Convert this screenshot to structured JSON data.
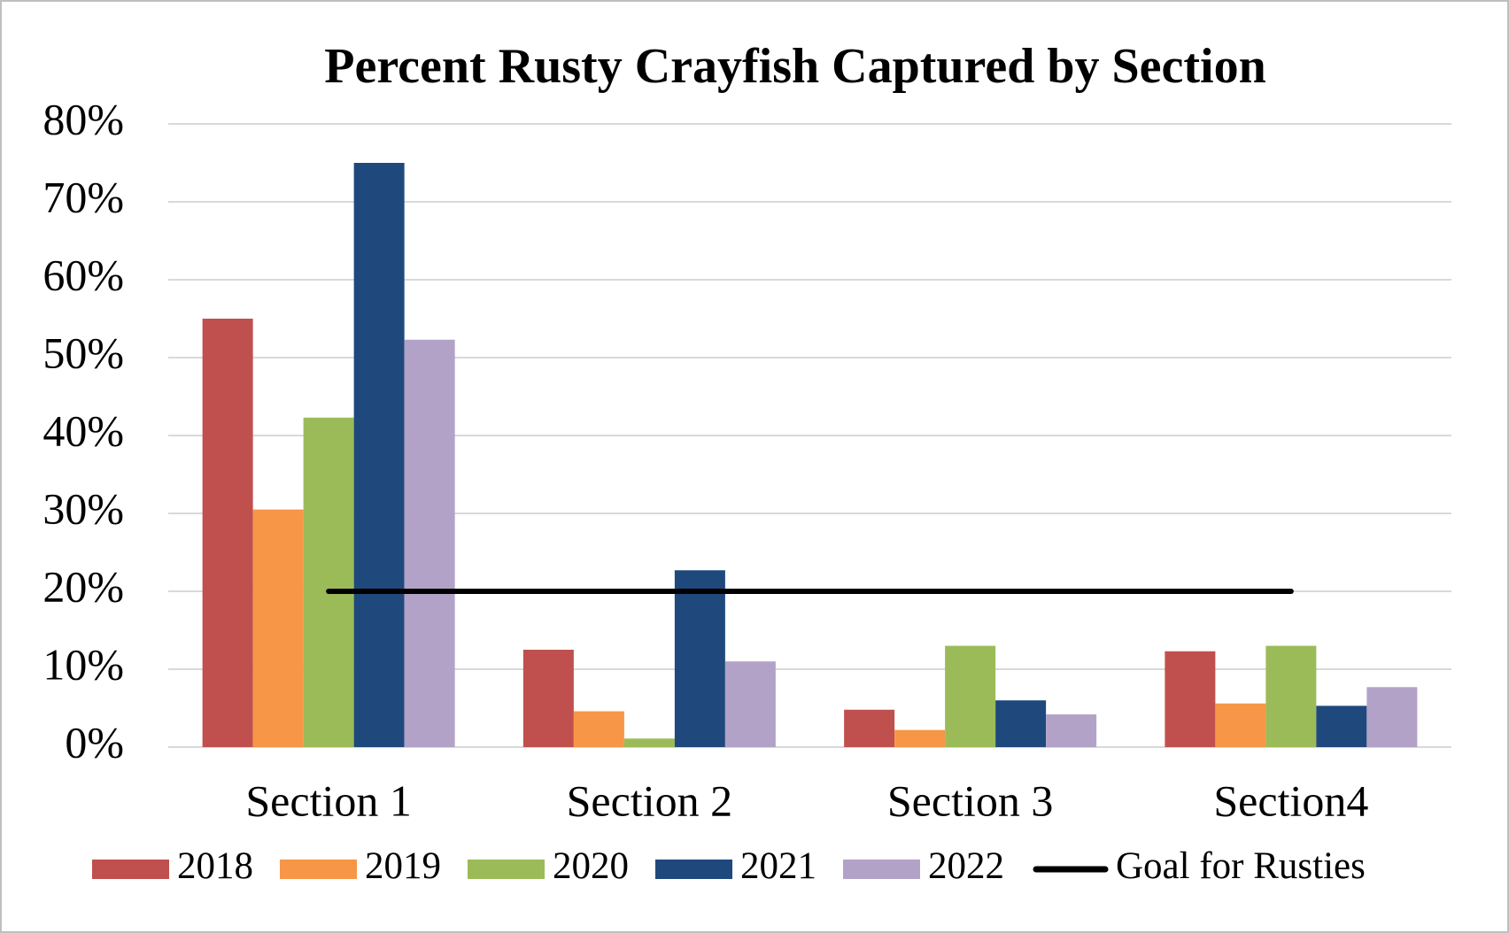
{
  "chart_data": {
    "type": "bar",
    "title": "Percent Rusty Crayfish Captured by Section",
    "categories": [
      "Section 1",
      "Section 2",
      "Section 3",
      "Section4"
    ],
    "series": [
      {
        "name": "2018",
        "color": "#c0504d",
        "values": [
          55,
          12.5,
          4.8,
          12.3
        ]
      },
      {
        "name": "2019",
        "color": "#f79646",
        "values": [
          30.5,
          4.6,
          2.2,
          5.6
        ]
      },
      {
        "name": "2020",
        "color": "#9bbb59",
        "values": [
          42.3,
          1.1,
          13,
          13
        ]
      },
      {
        "name": "2021",
        "color": "#1f497d",
        "values": [
          75,
          22.7,
          6,
          5.3
        ]
      },
      {
        "name": "2022",
        "color": "#b3a2c7",
        "values": [
          52.3,
          11,
          4.2,
          7.7
        ]
      },
      {
        "name": "Goal for Rusties",
        "type": "line",
        "color": "#000000",
        "values": [
          20,
          20,
          20,
          20
        ]
      }
    ],
    "ylim": [
      0,
      80
    ],
    "yticks": [
      {
        "value": 0,
        "label": "0%"
      },
      {
        "value": 10,
        "label": "10%"
      },
      {
        "value": 20,
        "label": "20%"
      },
      {
        "value": 30,
        "label": "30%"
      },
      {
        "value": 40,
        "label": "40%"
      },
      {
        "value": 50,
        "label": "50%"
      },
      {
        "value": 60,
        "label": "60%"
      },
      {
        "value": 70,
        "label": "70%"
      },
      {
        "value": 80,
        "label": "80%"
      }
    ],
    "grid": true,
    "legend": "bottom"
  }
}
